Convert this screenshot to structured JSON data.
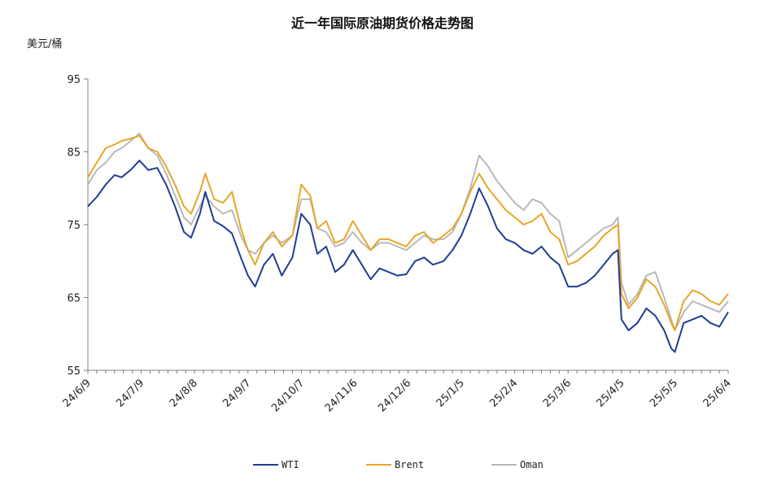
{
  "chart_data": {
    "type": "line",
    "title": "近一年国际原油期货价格走势图",
    "ylabel": "美元/桶",
    "xlabel": "",
    "ylim": [
      55,
      95
    ],
    "yticks": [
      55,
      65,
      75,
      85,
      95
    ],
    "grid": false,
    "legend_position": "bottom",
    "x_tick_labels": [
      "24/6/9",
      "24/7/9",
      "24/8/8",
      "24/9/7",
      "24/10/7",
      "24/11/6",
      "24/12/6",
      "25/1/5",
      "25/2/4",
      "25/3/6",
      "25/4/5",
      "25/5/5",
      "25/6/4"
    ],
    "x_start": "2024-06-09",
    "x_end": "2025-06-04",
    "series": [
      {
        "name": "WTI",
        "color": "#1f3e92",
        "points": [
          [
            "2024-06-09",
            77.5
          ],
          [
            "2024-06-14",
            78.8
          ],
          [
            "2024-06-19",
            80.5
          ],
          [
            "2024-06-24",
            81.8
          ],
          [
            "2024-06-28",
            81.5
          ],
          [
            "2024-07-03",
            82.5
          ],
          [
            "2024-07-08",
            83.8
          ],
          [
            "2024-07-13",
            82.5
          ],
          [
            "2024-07-18",
            82.8
          ],
          [
            "2024-07-23",
            80.5
          ],
          [
            "2024-07-28",
            77.5
          ],
          [
            "2024-08-02",
            74.0
          ],
          [
            "2024-08-06",
            73.2
          ],
          [
            "2024-08-11",
            76.5
          ],
          [
            "2024-08-14",
            79.5
          ],
          [
            "2024-08-19",
            75.5
          ],
          [
            "2024-08-24",
            74.8
          ],
          [
            "2024-08-29",
            73.8
          ],
          [
            "2024-09-03",
            70.5
          ],
          [
            "2024-09-07",
            68.0
          ],
          [
            "2024-09-11",
            66.5
          ],
          [
            "2024-09-16",
            69.5
          ],
          [
            "2024-09-21",
            71.0
          ],
          [
            "2024-09-26",
            68.0
          ],
          [
            "2024-10-02",
            70.5
          ],
          [
            "2024-10-07",
            76.5
          ],
          [
            "2024-10-12",
            75.0
          ],
          [
            "2024-10-16",
            71.0
          ],
          [
            "2024-10-21",
            72.0
          ],
          [
            "2024-10-26",
            68.5
          ],
          [
            "2024-10-31",
            69.5
          ],
          [
            "2024-11-05",
            71.5
          ],
          [
            "2024-11-10",
            69.5
          ],
          [
            "2024-11-15",
            67.5
          ],
          [
            "2024-11-20",
            69.0
          ],
          [
            "2024-11-25",
            68.5
          ],
          [
            "2024-11-30",
            68.0
          ],
          [
            "2024-12-05",
            68.2
          ],
          [
            "2024-12-10",
            70.0
          ],
          [
            "2024-12-15",
            70.5
          ],
          [
            "2024-12-20",
            69.5
          ],
          [
            "2024-12-26",
            70.0
          ],
          [
            "2024-12-31",
            71.5
          ],
          [
            "2025-01-05",
            73.5
          ],
          [
            "2025-01-10",
            76.5
          ],
          [
            "2025-01-15",
            80.0
          ],
          [
            "2025-01-20",
            77.5
          ],
          [
            "2025-01-25",
            74.5
          ],
          [
            "2025-01-30",
            73.0
          ],
          [
            "2025-02-04",
            72.5
          ],
          [
            "2025-02-09",
            71.5
          ],
          [
            "2025-02-14",
            71.0
          ],
          [
            "2025-02-19",
            72.0
          ],
          [
            "2025-02-24",
            70.5
          ],
          [
            "2025-03-01",
            69.5
          ],
          [
            "2025-03-06",
            66.5
          ],
          [
            "2025-03-11",
            66.5
          ],
          [
            "2025-03-16",
            67.0
          ],
          [
            "2025-03-21",
            68.0
          ],
          [
            "2025-03-26",
            69.5
          ],
          [
            "2025-03-31",
            71.0
          ],
          [
            "2025-04-03",
            71.5
          ],
          [
            "2025-04-05",
            62.0
          ],
          [
            "2025-04-09",
            60.5
          ],
          [
            "2025-04-14",
            61.5
          ],
          [
            "2025-04-19",
            63.5
          ],
          [
            "2025-04-24",
            62.5
          ],
          [
            "2025-04-29",
            60.5
          ],
          [
            "2025-05-03",
            58.0
          ],
          [
            "2025-05-05",
            57.5
          ],
          [
            "2025-05-10",
            61.5
          ],
          [
            "2025-05-15",
            62.0
          ],
          [
            "2025-05-20",
            62.5
          ],
          [
            "2025-05-25",
            61.5
          ],
          [
            "2025-05-30",
            61.0
          ],
          [
            "2025-06-04",
            63.0
          ]
        ]
      },
      {
        "name": "Brent",
        "color": "#e8a626",
        "points": [
          [
            "2024-06-09",
            81.5
          ],
          [
            "2024-06-14",
            83.5
          ],
          [
            "2024-06-19",
            85.5
          ],
          [
            "2024-06-24",
            86.0
          ],
          [
            "2024-06-28",
            86.5
          ],
          [
            "2024-07-03",
            86.8
          ],
          [
            "2024-07-08",
            87.2
          ],
          [
            "2024-07-13",
            85.5
          ],
          [
            "2024-07-18",
            85.0
          ],
          [
            "2024-07-23",
            83.0
          ],
          [
            "2024-07-28",
            80.5
          ],
          [
            "2024-08-02",
            77.5
          ],
          [
            "2024-08-06",
            76.5
          ],
          [
            "2024-08-11",
            79.5
          ],
          [
            "2024-08-14",
            82.0
          ],
          [
            "2024-08-19",
            78.5
          ],
          [
            "2024-08-24",
            78.0
          ],
          [
            "2024-08-29",
            79.5
          ],
          [
            "2024-09-03",
            74.5
          ],
          [
            "2024-09-07",
            71.5
          ],
          [
            "2024-09-11",
            69.5
          ],
          [
            "2024-09-16",
            72.5
          ],
          [
            "2024-09-21",
            74.0
          ],
          [
            "2024-09-26",
            72.0
          ],
          [
            "2024-10-02",
            73.5
          ],
          [
            "2024-10-07",
            80.5
          ],
          [
            "2024-10-12",
            79.0
          ],
          [
            "2024-10-16",
            74.5
          ],
          [
            "2024-10-21",
            75.5
          ],
          [
            "2024-10-26",
            72.5
          ],
          [
            "2024-10-31",
            73.0
          ],
          [
            "2024-11-05",
            75.5
          ],
          [
            "2024-11-10",
            73.5
          ],
          [
            "2024-11-15",
            71.5
          ],
          [
            "2024-11-20",
            73.0
          ],
          [
            "2024-11-25",
            73.0
          ],
          [
            "2024-11-30",
            72.5
          ],
          [
            "2024-12-05",
            72.0
          ],
          [
            "2024-12-10",
            73.5
          ],
          [
            "2024-12-15",
            74.0
          ],
          [
            "2024-12-20",
            72.5
          ],
          [
            "2024-12-26",
            73.5
          ],
          [
            "2024-12-31",
            74.5
          ],
          [
            "2025-01-05",
            76.5
          ],
          [
            "2025-01-10",
            79.5
          ],
          [
            "2025-01-15",
            82.0
          ],
          [
            "2025-01-20",
            80.0
          ],
          [
            "2025-01-25",
            78.5
          ],
          [
            "2025-01-30",
            77.0
          ],
          [
            "2025-02-04",
            76.0
          ],
          [
            "2025-02-09",
            75.0
          ],
          [
            "2025-02-14",
            75.5
          ],
          [
            "2025-02-19",
            76.5
          ],
          [
            "2025-02-24",
            74.0
          ],
          [
            "2025-03-01",
            73.0
          ],
          [
            "2025-03-06",
            69.5
          ],
          [
            "2025-03-11",
            70.0
          ],
          [
            "2025-03-16",
            71.0
          ],
          [
            "2025-03-21",
            72.0
          ],
          [
            "2025-03-26",
            73.5
          ],
          [
            "2025-03-31",
            74.5
          ],
          [
            "2025-04-03",
            75.0
          ],
          [
            "2025-04-05",
            65.5
          ],
          [
            "2025-04-09",
            63.5
          ],
          [
            "2025-04-14",
            65.0
          ],
          [
            "2025-04-19",
            67.5
          ],
          [
            "2025-04-24",
            66.5
          ],
          [
            "2025-04-29",
            64.0
          ],
          [
            "2025-05-03",
            61.5
          ],
          [
            "2025-05-05",
            60.5
          ],
          [
            "2025-05-10",
            64.5
          ],
          [
            "2025-05-15",
            66.0
          ],
          [
            "2025-05-20",
            65.5
          ],
          [
            "2025-05-25",
            64.5
          ],
          [
            "2025-05-30",
            64.0
          ],
          [
            "2025-06-04",
            65.5
          ]
        ]
      },
      {
        "name": "Oman",
        "color": "#b9b9b9",
        "points": [
          [
            "2024-06-09",
            80.5
          ],
          [
            "2024-06-14",
            82.5
          ],
          [
            "2024-06-19",
            83.5
          ],
          [
            "2024-06-24",
            85.0
          ],
          [
            "2024-06-28",
            85.5
          ],
          [
            "2024-07-03",
            86.5
          ],
          [
            "2024-07-08",
            87.5
          ],
          [
            "2024-07-13",
            85.5
          ],
          [
            "2024-07-18",
            84.5
          ],
          [
            "2024-07-23",
            82.0
          ],
          [
            "2024-07-28",
            79.0
          ],
          [
            "2024-08-02",
            76.0
          ],
          [
            "2024-08-06",
            75.0
          ],
          [
            "2024-08-11",
            77.5
          ],
          [
            "2024-08-14",
            79.0
          ],
          [
            "2024-08-19",
            77.5
          ],
          [
            "2024-08-24",
            76.5
          ],
          [
            "2024-08-29",
            77.0
          ],
          [
            "2024-09-03",
            73.5
          ],
          [
            "2024-09-07",
            71.5
          ],
          [
            "2024-09-11",
            71.0
          ],
          [
            "2024-09-16",
            72.5
          ],
          [
            "2024-09-21",
            73.5
          ],
          [
            "2024-09-26",
            72.5
          ],
          [
            "2024-10-02",
            73.5
          ],
          [
            "2024-10-07",
            78.5
          ],
          [
            "2024-10-12",
            78.5
          ],
          [
            "2024-10-16",
            74.5
          ],
          [
            "2024-10-21",
            74.0
          ],
          [
            "2024-10-26",
            72.0
          ],
          [
            "2024-10-31",
            72.5
          ],
          [
            "2024-11-05",
            74.0
          ],
          [
            "2024-11-10",
            72.5
          ],
          [
            "2024-11-15",
            71.5
          ],
          [
            "2024-11-20",
            72.5
          ],
          [
            "2024-11-25",
            72.5
          ],
          [
            "2024-11-30",
            72.0
          ],
          [
            "2024-12-05",
            71.5
          ],
          [
            "2024-12-10",
            72.5
          ],
          [
            "2024-12-15",
            73.5
          ],
          [
            "2024-12-20",
            73.0
          ],
          [
            "2024-12-26",
            73.0
          ],
          [
            "2024-12-31",
            74.0
          ],
          [
            "2025-01-05",
            76.5
          ],
          [
            "2025-01-10",
            80.0
          ],
          [
            "2025-01-15",
            84.5
          ],
          [
            "2025-01-20",
            83.0
          ],
          [
            "2025-01-25",
            81.0
          ],
          [
            "2025-01-30",
            79.5
          ],
          [
            "2025-02-04",
            78.0
          ],
          [
            "2025-02-09",
            77.0
          ],
          [
            "2025-02-14",
            78.5
          ],
          [
            "2025-02-19",
            78.0
          ],
          [
            "2025-02-24",
            76.5
          ],
          [
            "2025-03-01",
            75.5
          ],
          [
            "2025-03-06",
            70.5
          ],
          [
            "2025-03-11",
            71.5
          ],
          [
            "2025-03-16",
            72.5
          ],
          [
            "2025-03-21",
            73.5
          ],
          [
            "2025-03-26",
            74.5
          ],
          [
            "2025-03-31",
            75.0
          ],
          [
            "2025-04-03",
            76.0
          ],
          [
            "2025-04-05",
            67.0
          ],
          [
            "2025-04-09",
            64.0
          ],
          [
            "2025-04-14",
            65.5
          ],
          [
            "2025-04-19",
            68.0
          ],
          [
            "2025-04-24",
            68.5
          ],
          [
            "2025-04-29",
            65.0
          ],
          [
            "2025-05-03",
            62.0
          ],
          [
            "2025-05-05",
            60.5
          ],
          [
            "2025-05-10",
            63.0
          ],
          [
            "2025-05-15",
            64.5
          ],
          [
            "2025-05-20",
            64.0
          ],
          [
            "2025-05-25",
            63.5
          ],
          [
            "2025-05-30",
            63.0
          ],
          [
            "2025-06-04",
            64.5
          ]
        ]
      }
    ]
  }
}
